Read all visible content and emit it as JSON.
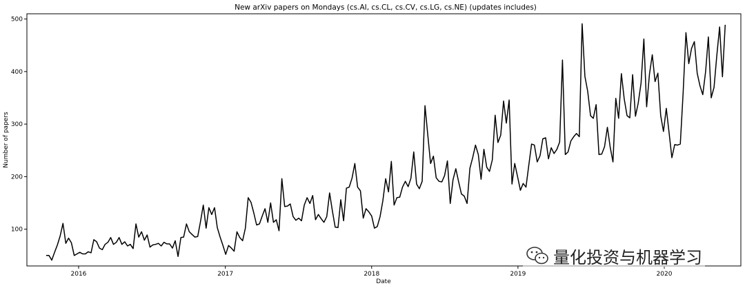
{
  "chart_data": {
    "type": "line",
    "title": "New arXiv papers on Mondays (cs.AI, cs.CL, cs.CV, cs.LG, cs.NE) (updates includes)",
    "xlabel": "Date",
    "ylabel": "Number of papers",
    "x_ticks": [
      "2016",
      "2017",
      "2018",
      "2019",
      "2020"
    ],
    "y_ticks": [
      100,
      200,
      300,
      400,
      500
    ],
    "xlim": [
      "2015-08-25",
      "2020-07-10"
    ],
    "ylim": [
      30,
      510
    ],
    "grid": false,
    "legend": "none",
    "line_color": "#000000",
    "series": [
      {
        "x": [
          "2015-10-12",
          "2015-10-19",
          "2015-10-26",
          "2015-11-02",
          "2015-11-09",
          "2015-11-16",
          "2015-11-23",
          "2015-11-30",
          "2015-12-07",
          "2015-12-14",
          "2015-12-21",
          "2015-12-28",
          "2016-01-04",
          "2016-01-11",
          "2016-01-18",
          "2016-01-25",
          "2016-02-01",
          "2016-02-08",
          "2016-02-15",
          "2016-02-22",
          "2016-02-29",
          "2016-03-07",
          "2016-03-14",
          "2016-03-21",
          "2016-03-28",
          "2016-04-04",
          "2016-04-11",
          "2016-04-18",
          "2016-04-25",
          "2016-05-02",
          "2016-05-09",
          "2016-05-16",
          "2016-05-23",
          "2016-05-30",
          "2016-06-06",
          "2016-06-13",
          "2016-06-20",
          "2016-06-27",
          "2016-07-04",
          "2016-07-11",
          "2016-07-18",
          "2016-07-25",
          "2016-08-01",
          "2016-08-08",
          "2016-08-15",
          "2016-08-22",
          "2016-08-29",
          "2016-09-05",
          "2016-09-12",
          "2016-09-19",
          "2016-09-26",
          "2016-10-03",
          "2016-10-10",
          "2016-10-17",
          "2016-10-24",
          "2016-10-31",
          "2016-11-07",
          "2016-11-14",
          "2016-11-21",
          "2016-11-28",
          "2016-12-05",
          "2016-12-12",
          "2016-12-19",
          "2016-12-26",
          "2017-01-02",
          "2017-01-09",
          "2017-01-16",
          "2017-01-23",
          "2017-01-30",
          "2017-02-06",
          "2017-02-13",
          "2017-02-20",
          "2017-02-27",
          "2017-03-06",
          "2017-03-13",
          "2017-03-20",
          "2017-03-27",
          "2017-04-03",
          "2017-04-10",
          "2017-04-17",
          "2017-04-24",
          "2017-05-01",
          "2017-05-08",
          "2017-05-15",
          "2017-05-22",
          "2017-05-29",
          "2017-06-05",
          "2017-06-12",
          "2017-06-19",
          "2017-06-26",
          "2017-07-03",
          "2017-07-10",
          "2017-07-17",
          "2017-07-24",
          "2017-07-31",
          "2017-08-07",
          "2017-08-14",
          "2017-08-21",
          "2017-08-28",
          "2017-09-04",
          "2017-09-11",
          "2017-09-18",
          "2017-09-25",
          "2017-10-02",
          "2017-10-09",
          "2017-10-16",
          "2017-10-23",
          "2017-10-30",
          "2017-11-06",
          "2017-11-13",
          "2017-11-20",
          "2017-11-27",
          "2017-12-04",
          "2017-12-11",
          "2017-12-18",
          "2017-12-25",
          "2018-01-01",
          "2018-01-08",
          "2018-01-15",
          "2018-01-22",
          "2018-01-29",
          "2018-02-05",
          "2018-02-12",
          "2018-02-19",
          "2018-02-26",
          "2018-03-05",
          "2018-03-12",
          "2018-03-19",
          "2018-03-26",
          "2018-04-02",
          "2018-04-09",
          "2018-04-16",
          "2018-04-23",
          "2018-04-30",
          "2018-05-07",
          "2018-05-14",
          "2018-05-21",
          "2018-05-28",
          "2018-06-04",
          "2018-06-11",
          "2018-06-18",
          "2018-06-25",
          "2018-07-02",
          "2018-07-09",
          "2018-07-16",
          "2018-07-23",
          "2018-07-30",
          "2018-08-06",
          "2018-08-13",
          "2018-08-20",
          "2018-08-27",
          "2018-09-03",
          "2018-09-10",
          "2018-09-17",
          "2018-09-24",
          "2018-10-01",
          "2018-10-08",
          "2018-10-15",
          "2018-10-22",
          "2018-10-29",
          "2018-11-05",
          "2018-11-12",
          "2018-11-19",
          "2018-11-26",
          "2018-12-03",
          "2018-12-10",
          "2018-12-17",
          "2018-12-24",
          "2018-12-31",
          "2019-01-07",
          "2019-01-14",
          "2019-01-21",
          "2019-01-28",
          "2019-02-04",
          "2019-02-11",
          "2019-02-18",
          "2019-02-25",
          "2019-03-04",
          "2019-03-11",
          "2019-03-18",
          "2019-03-25",
          "2019-04-01",
          "2019-04-08",
          "2019-04-15",
          "2019-04-22",
          "2019-04-29",
          "2019-05-06",
          "2019-05-13",
          "2019-05-20",
          "2019-05-27",
          "2019-06-03",
          "2019-06-10",
          "2019-06-17",
          "2019-06-24",
          "2019-07-01",
          "2019-07-08",
          "2019-07-15",
          "2019-07-22",
          "2019-07-29",
          "2019-08-05",
          "2019-08-12",
          "2019-08-19",
          "2019-08-26",
          "2019-09-02",
          "2019-09-09",
          "2019-09-16",
          "2019-09-23",
          "2019-09-30",
          "2019-10-07",
          "2019-10-14",
          "2019-10-21",
          "2019-10-28",
          "2019-11-04",
          "2019-11-11",
          "2019-11-18",
          "2019-11-25",
          "2019-12-02",
          "2019-12-09",
          "2019-12-16",
          "2019-12-23",
          "2019-12-30",
          "2020-01-06",
          "2020-01-13",
          "2020-01-20",
          "2020-01-27",
          "2020-02-03",
          "2020-02-10",
          "2020-02-17",
          "2020-02-24",
          "2020-03-02",
          "2020-03-09",
          "2020-03-16",
          "2020-03-23",
          "2020-03-30",
          "2020-04-06",
          "2020-04-13",
          "2020-04-20",
          "2020-04-27",
          "2020-05-04",
          "2020-05-11",
          "2020-05-18",
          "2020-05-25",
          "2020-06-01"
        ],
        "values": [
          50,
          50,
          41,
          56,
          70,
          87,
          111,
          73,
          83,
          74,
          50,
          53,
          56,
          53,
          53,
          57,
          55,
          80,
          76,
          64,
          61,
          71,
          75,
          84,
          71,
          75,
          84,
          71,
          76,
          68,
          71,
          63,
          110,
          85,
          95,
          79,
          89,
          66,
          70,
          71,
          73,
          68,
          75,
          72,
          72,
          64,
          78,
          48,
          84,
          85,
          110,
          95,
          90,
          85,
          86,
          114,
          146,
          102,
          141,
          128,
          141,
          103,
          85,
          69,
          52,
          69,
          64,
          58,
          95,
          84,
          78,
          102,
          160,
          151,
          131,
          108,
          110,
          125,
          139,
          113,
          150,
          113,
          118,
          97,
          196,
          143,
          144,
          148,
          124,
          117,
          121,
          116,
          146,
          160,
          149,
          164,
          118,
          128,
          120,
          113,
          124,
          169,
          135,
          104,
          103,
          156,
          116,
          178,
          180,
          197,
          225,
          180,
          173,
          121,
          139,
          133,
          125,
          102,
          105,
          124,
          154,
          196,
          171,
          229,
          146,
          160,
          161,
          180,
          191,
          181,
          197,
          247,
          186,
          177,
          191,
          335,
          280,
          225,
          239,
          198,
          191,
          190,
          202,
          230,
          149,
          194,
          215,
          190,
          167,
          163,
          149,
          216,
          236,
          260,
          242,
          195,
          252,
          218,
          210,
          232,
          317,
          265,
          279,
          344,
          302,
          346,
          186,
          225,
          200,
          174,
          187,
          180,
          222,
          262,
          260,
          228,
          240,
          272,
          274,
          234,
          255,
          244,
          252,
          266,
          422,
          242,
          247,
          268,
          276,
          282,
          276,
          491,
          391,
          362,
          316,
          311,
          337,
          242,
          243,
          257,
          294,
          256,
          228,
          349,
          311,
          396,
          348,
          316,
          312,
          394,
          315,
          340,
          378,
          462,
          333,
          395,
          432,
          381,
          397,
          316,
          286,
          330,
          283,
          236,
          261,
          260,
          262,
          359,
          474,
          415,
          444,
          457,
          397,
          373,
          356,
          400,
          466,
          350,
          370,
          430,
          485,
          390,
          489
        ]
      }
    ]
  },
  "watermark": {
    "text": "量化投资与机器学习",
    "icon": "wechat-icon"
  }
}
